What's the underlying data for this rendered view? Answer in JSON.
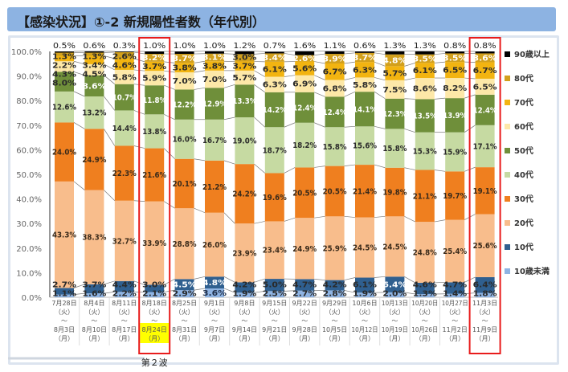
{
  "header": {
    "title": "【感染状況】①-2 新規陽性者数（年代別）"
  },
  "annotation": {
    "wave_label": "第２波"
  },
  "chart_data": {
    "type": "bar",
    "stacked": true,
    "percent": true,
    "title": "【感染状況】①-2 新規陽性者数（年代別）",
    "ylim": [
      0,
      100
    ],
    "yticks": [
      "0.0%",
      "10.0%",
      "20.0%",
      "30.0%",
      "40.0%",
      "50.0%",
      "60.0%",
      "70.0%",
      "80.0%",
      "90.0%",
      "100.0%"
    ],
    "legend_position": "right",
    "categories": [
      {
        "start": "7月28日",
        "start_day": "（火）",
        "sep": "～",
        "end": "8月3日",
        "end_day": "（月）"
      },
      {
        "start": "8月4日",
        "start_day": "（火）",
        "sep": "～",
        "end": "8月10日",
        "end_day": "（月）"
      },
      {
        "start": "8月11日",
        "start_day": "（火）",
        "sep": "～",
        "end": "8月17日",
        "end_day": "（月）"
      },
      {
        "start": "8月18日",
        "start_day": "（火）",
        "sep": "～",
        "end": "8月24日",
        "end_day": "（月）"
      },
      {
        "start": "8月25日",
        "start_day": "（火）",
        "sep": "～",
        "end": "8月31日",
        "end_day": "（月）"
      },
      {
        "start": "9月1日",
        "start_day": "（火）",
        "sep": "～",
        "end": "9月7日",
        "end_day": "（月）"
      },
      {
        "start": "9月8日",
        "start_day": "（火）",
        "sep": "～",
        "end": "9月14日",
        "end_day": "（月）"
      },
      {
        "start": "9月15日",
        "start_day": "（火）",
        "sep": "～",
        "end": "9月21日",
        "end_day": "（月）"
      },
      {
        "start": "9月22日",
        "start_day": "（火）",
        "sep": "～",
        "end": "9月28日",
        "end_day": "（月）"
      },
      {
        "start": "9月29日",
        "start_day": "（火）",
        "sep": "～",
        "end": "10月5日",
        "end_day": "（月）"
      },
      {
        "start": "10月6日",
        "start_day": "（火）",
        "sep": "～",
        "end": "10月12日",
        "end_day": "（月）"
      },
      {
        "start": "10月13日",
        "start_day": "（火）",
        "sep": "～",
        "end": "10月19日",
        "end_day": "（月）"
      },
      {
        "start": "10月20日",
        "start_day": "（火）",
        "sep": "～",
        "end": "10月26日",
        "end_day": "（月）"
      },
      {
        "start": "10月27日",
        "start_day": "（火）",
        "sep": "～",
        "end": "11月2日",
        "end_day": "（月）"
      },
      {
        "start": "11月3日",
        "start_day": "（火）",
        "sep": "～",
        "end": "11月9日",
        "end_day": "（月）"
      }
    ],
    "highlighted_categories": [
      3,
      14
    ],
    "highlighted_end_date": 3,
    "series": [
      {
        "name": "10歳未満",
        "color": "#8fb4e3",
        "label_color": "#1f2f4a",
        "values": [
          1.1,
          1.6,
          2.2,
          2.1,
          2.9,
          3.6,
          1.9,
          2.5,
          2.7,
          2.8,
          1.9,
          2.0,
          1.3,
          1.4,
          1.8
        ]
      },
      {
        "name": "10代",
        "color": "#2f5f8f",
        "label_color": "#ffffff",
        "values": [
          2.7,
          3.7,
          4.4,
          3.0,
          4.5,
          4.8,
          4.2,
          5.0,
          4.7,
          4.2,
          6.1,
          6.4,
          4.6,
          4.7,
          6.4
        ]
      },
      {
        "name": "20代",
        "color": "#f8bd8c",
        "label_color": "#3a2a1a",
        "values": [
          43.3,
          38.3,
          32.7,
          33.9,
          28.8,
          26.0,
          23.9,
          23.4,
          24.9,
          25.9,
          24.5,
          24.5,
          24.8,
          25.4,
          25.6
        ]
      },
      {
        "name": "30代",
        "color": "#ef7f1f",
        "label_color": "#3a2a1a",
        "values": [
          24.0,
          24.9,
          22.3,
          21.6,
          20.1,
          21.2,
          24.2,
          19.6,
          20.5,
          20.5,
          21.4,
          19.8,
          21.1,
          19.7,
          19.1
        ]
      },
      {
        "name": "40代",
        "color": "#c6daa2",
        "label_color": "#2a2a2a",
        "values": [
          12.6,
          13.2,
          14.4,
          13.8,
          16.0,
          16.7,
          19.0,
          18.7,
          18.2,
          15.8,
          15.6,
          15.8,
          15.3,
          15.9,
          17.1
        ]
      },
      {
        "name": "50代",
        "color": "#6f8f3a",
        "label_color": "#ffffff",
        "values": [
          8.0,
          8.6,
          10.7,
          11.8,
          12.2,
          12.9,
          13.3,
          14.2,
          12.4,
          12.4,
          14.1,
          12.3,
          13.5,
          13.9,
          12.4
        ]
      },
      {
        "name": "60代",
        "color": "#fde8a8",
        "label_color": "#2a2a2a",
        "values": [
          4.3,
          4.5,
          5.8,
          5.9,
          7.0,
          7.0,
          5.7,
          6.3,
          6.9,
          6.8,
          5.8,
          7.5,
          8.6,
          8.2,
          6.5
        ]
      },
      {
        "name": "70代",
        "color": "#f2b411",
        "label_color": "#2a2a2a",
        "values": [
          2.2,
          3.4,
          4.6,
          3.7,
          3.8,
          3.8,
          3.7,
          6.1,
          5.6,
          6.7,
          6.3,
          5.7,
          6.1,
          6.5,
          6.7
        ]
      },
      {
        "name": "80代",
        "color": "#d2a01c",
        "label_color": "#ffffff",
        "values": [
          1.3,
          1.3,
          2.6,
          3.2,
          3.7,
          3.1,
          3.0,
          3.4,
          2.6,
          3.9,
          3.7,
          4.8,
          3.5,
          3.5,
          3.6
        ]
      },
      {
        "name": "90歳以上",
        "color": "#000000",
        "label_color": "#1a1a1a",
        "values": [
          0.5,
          0.6,
          0.3,
          1.0,
          1.0,
          1.0,
          1.2,
          0.7,
          1.6,
          1.1,
          0.6,
          1.3,
          1.3,
          0.8,
          0.8
        ]
      }
    ]
  }
}
